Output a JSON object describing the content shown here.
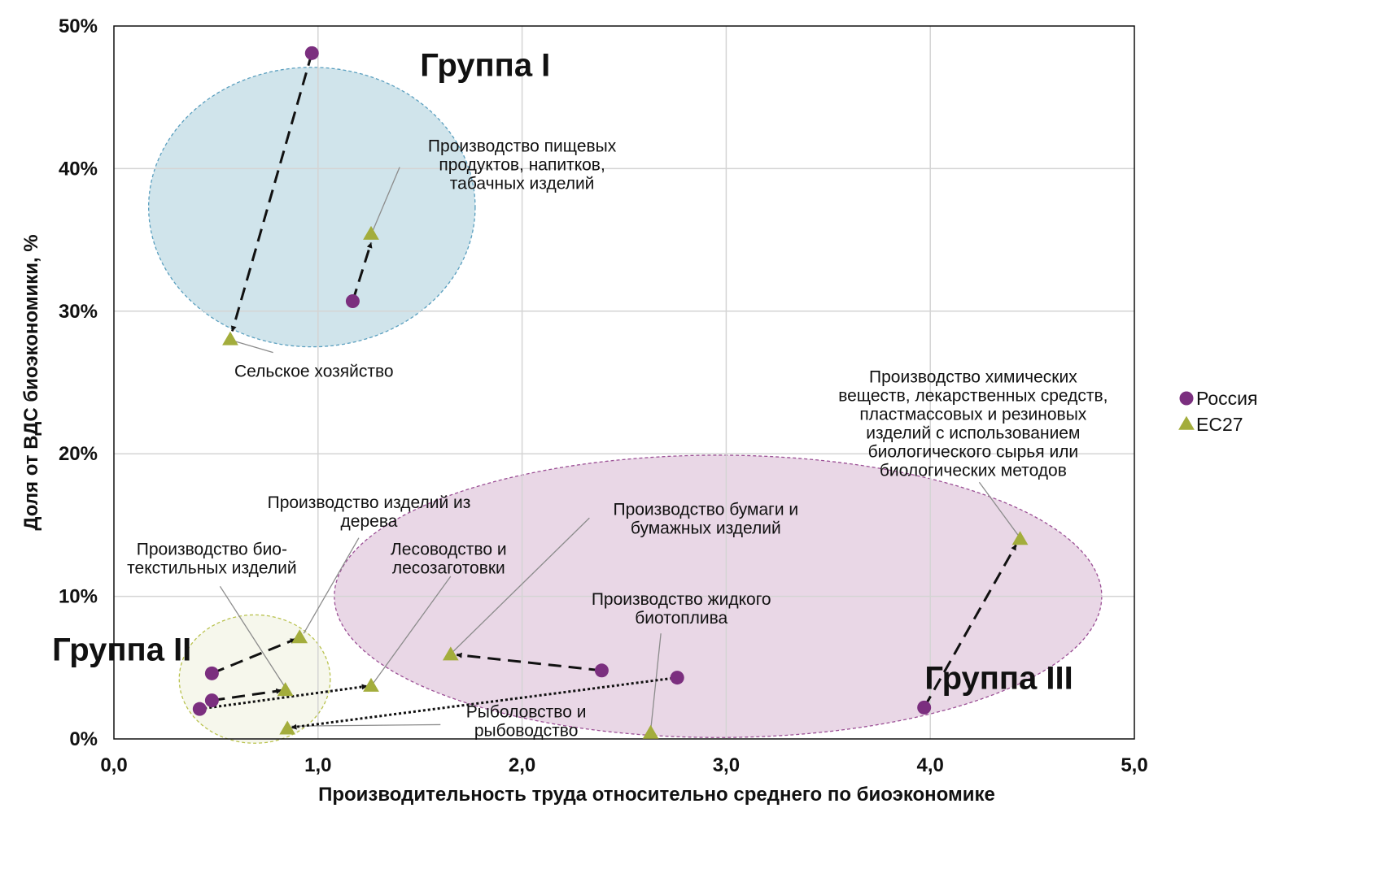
{
  "chart_data": {
    "type": "scatter",
    "xlabel": "Производительность труда относительно среднего по биоэкономике",
    "ylabel": "Доля от ВДС биоэкономики, %",
    "xlim": [
      0,
      5
    ],
    "ylim": [
      0,
      50
    ],
    "x_ticks": [
      "0,0",
      "1,0",
      "2,0",
      "3,0",
      "4,0",
      "5,0"
    ],
    "y_ticks": [
      "0%",
      "10%",
      "20%",
      "30%",
      "40%",
      "50%"
    ],
    "grid": true,
    "legend_position": "right",
    "series": [
      {
        "name": "Россия",
        "marker": "circle",
        "color": "#7b2f7f",
        "points": [
          {
            "sector": "agriculture",
            "x": 0.97,
            "y": 48.1
          },
          {
            "sector": "food",
            "x": 1.17,
            "y": 30.7
          },
          {
            "sector": "wood",
            "x": 0.48,
            "y": 4.6
          },
          {
            "sector": "textile",
            "x": 0.48,
            "y": 2.7
          },
          {
            "sector": "forestry",
            "x": 0.42,
            "y": 2.1
          },
          {
            "sector": "paper",
            "x": 2.39,
            "y": 4.8
          },
          {
            "sector": "fishery",
            "x": 2.76,
            "y": 4.3
          },
          {
            "sector": "chemical",
            "x": 3.97,
            "y": 2.2
          }
        ]
      },
      {
        "name": "ЕС27",
        "marker": "triangle",
        "color": "#a3ad3c",
        "points": [
          {
            "sector": "agriculture",
            "x": 0.57,
            "y": 28.0
          },
          {
            "sector": "food",
            "x": 1.26,
            "y": 35.4
          },
          {
            "sector": "wood",
            "x": 0.91,
            "y": 7.1
          },
          {
            "sector": "textile",
            "x": 0.84,
            "y": 3.4
          },
          {
            "sector": "forestry",
            "x": 1.26,
            "y": 3.7
          },
          {
            "sector": "paper",
            "x": 1.65,
            "y": 5.9
          },
          {
            "sector": "fishery",
            "x": 0.85,
            "y": 0.7
          },
          {
            "sector": "biofuel",
            "x": 2.63,
            "y": 0.4
          },
          {
            "sector": "chemical",
            "x": 4.44,
            "y": 14.0
          }
        ]
      }
    ],
    "arrows": [
      {
        "from": [
          0.97,
          48.1
        ],
        "to": [
          0.58,
          28.6
        ],
        "style": "dashed"
      },
      {
        "from": [
          1.17,
          30.7
        ],
        "to": [
          1.26,
          34.8
        ],
        "style": "dashed"
      },
      {
        "from": [
          0.48,
          4.6
        ],
        "to": [
          0.89,
          7.0
        ],
        "style": "dashed"
      },
      {
        "from": [
          0.48,
          2.7
        ],
        "to": [
          0.82,
          3.4
        ],
        "style": "dashed"
      },
      {
        "from": [
          0.42,
          2.1
        ],
        "to": [
          1.24,
          3.7
        ],
        "style": "dotted"
      },
      {
        "from": [
          2.39,
          4.8
        ],
        "to": [
          1.68,
          5.9
        ],
        "style": "dashed"
      },
      {
        "from": [
          2.76,
          4.3
        ],
        "to": [
          0.87,
          0.8
        ],
        "style": "dotted"
      },
      {
        "from": [
          3.97,
          2.2
        ],
        "to": [
          4.42,
          13.6
        ],
        "style": "dashed"
      }
    ],
    "groups": [
      {
        "label": "Группа I",
        "cx": 0.97,
        "cy": 37.3,
        "rx": 0.8,
        "ry": 9.8,
        "fill": "#a9cedb",
        "stroke": "#5a9fbf",
        "label_x": 1.5,
        "label_y": 46.5
      },
      {
        "label": "Группа II",
        "cx": 0.69,
        "cy": 4.2,
        "rx": 0.37,
        "ry": 4.5,
        "fill": "#eef0dc",
        "stroke": "#b9c24e",
        "label_x": 0.38,
        "label_y": 5.5
      },
      {
        "label": "Группа III",
        "cx": 2.96,
        "cy": 10.0,
        "rx": 1.88,
        "ry": 9.9,
        "fill": "#d7b6d2",
        "stroke": "#9b4f95",
        "label_x": 4.7,
        "label_y": 3.5
      }
    ],
    "annotations": [
      {
        "lines": [
          "Сельское хозяйство"
        ],
        "x": 0.98,
        "y": 25.4,
        "leader_to": [
          0.59,
          27.9
        ],
        "leader_from": [
          0.78,
          27.1
        ]
      },
      {
        "lines": [
          "Производство пищевых",
          "продуктов,  напитков,",
          "табачных изделий"
        ],
        "x": 2.0,
        "y": 41.2,
        "leader_to": [
          1.27,
          35.7
        ],
        "leader_from": [
          1.4,
          40.1
        ]
      },
      {
        "lines": [
          "Производство изделий из",
          "дерева"
        ],
        "x": 1.25,
        "y": 16.2,
        "leader_to": [
          0.93,
          7.4
        ],
        "leader_from": [
          1.2,
          14.1
        ]
      },
      {
        "lines": [
          "Производство био-",
          "текстильных изделий"
        ],
        "x": 0.48,
        "y": 12.9,
        "leader_to": [
          0.84,
          3.6
        ],
        "leader_from": [
          0.52,
          10.7
        ]
      },
      {
        "lines": [
          "Лесоводство и",
          "лесозаготовки"
        ],
        "x": 1.64,
        "y": 12.9,
        "leader_to": [
          1.27,
          3.9
        ],
        "leader_from": [
          1.65,
          11.4
        ]
      },
      {
        "lines": [
          "Производство бумаги и",
          "бумажных изделий"
        ],
        "x": 2.9,
        "y": 15.7,
        "leader_to": [
          1.66,
          6.1
        ],
        "leader_from": [
          2.33,
          15.5
        ]
      },
      {
        "lines": [
          "Производство жидкого",
          "биотоплива"
        ],
        "x": 2.78,
        "y": 9.4,
        "leader_to": [
          2.63,
          0.6
        ],
        "leader_from": [
          2.68,
          7.4
        ]
      },
      {
        "lines": [
          "Рыболовство и",
          "рыбоводство"
        ],
        "x": 2.02,
        "y": 1.5,
        "leader_to": [
          0.87,
          0.9
        ],
        "leader_from": [
          1.6,
          1.0
        ]
      },
      {
        "lines": [
          "Производство химических",
          "веществ, лекарственных средств,",
          "пластмассовых и резиновых",
          "изделий с использованием",
          "биологического сырья или",
          "биологических методов"
        ],
        "x": 4.21,
        "y": 25.0,
        "leader_to": [
          4.43,
          14.3
        ],
        "leader_from": [
          4.24,
          18.0
        ]
      }
    ]
  }
}
